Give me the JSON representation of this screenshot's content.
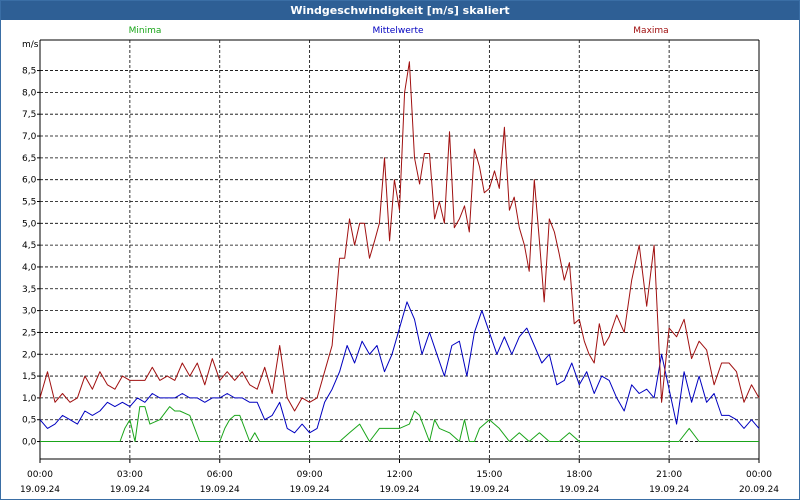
{
  "window": {
    "title": "Windgeschwindigkeit [m/s] skaliert"
  },
  "colors": {
    "minima": "#1aa51a",
    "mittelwerte": "#0000c0",
    "maxima": "#a01010",
    "grid": "#000000",
    "axis": "#000000"
  },
  "chart_data": {
    "type": "line",
    "title": "Windgeschwindigkeit [m/s] skaliert",
    "ylabel": "m/s",
    "ylim": [
      -0.4,
      9.2
    ],
    "xlim": [
      0,
      24
    ],
    "x_unit": "hours since 19.09.24 00:00",
    "y_ticks": [
      "0,0",
      "0,5",
      "1,0",
      "1,5",
      "2,0",
      "2,5",
      "3,0",
      "3,5",
      "4,0",
      "4,5",
      "5,0",
      "5,5",
      "6,0",
      "6,5",
      "7,0",
      "7,5",
      "8,0",
      "8,5"
    ],
    "x_ticks": [
      {
        "time": "00:00",
        "date": "19.09.24"
      },
      {
        "time": "03:00",
        "date": "19.09.24"
      },
      {
        "time": "06:00",
        "date": "19.09.24"
      },
      {
        "time": "09:00",
        "date": "19.09.24"
      },
      {
        "time": "12:00",
        "date": "19.09.24"
      },
      {
        "time": "15:00",
        "date": "19.09.24"
      },
      {
        "time": "18:00",
        "date": "19.09.24"
      },
      {
        "time": "21:00",
        "date": "19.09.24"
      },
      {
        "time": "00:00",
        "date": "20.09.24"
      }
    ],
    "grid": true,
    "legend_position": "top",
    "series": [
      {
        "name": "Minima",
        "x": [
          0.0,
          0.33,
          1.0,
          1.33,
          1.67,
          2.0,
          2.33,
          2.67,
          2.83,
          3.0,
          3.17,
          3.33,
          3.5,
          3.67,
          4.0,
          4.33,
          4.5,
          4.67,
          5.0,
          5.33,
          5.67,
          6.0,
          6.17,
          6.33,
          6.5,
          6.67,
          7.0,
          7.17,
          7.33,
          7.5,
          8.0,
          8.5,
          9.0,
          9.33,
          9.67,
          10.0,
          10.33,
          10.67,
          11.0,
          11.33,
          11.67,
          12.0,
          12.33,
          12.5,
          12.67,
          13.0,
          13.17,
          13.33,
          13.67,
          14.0,
          14.17,
          14.33,
          14.5,
          14.67,
          15.0,
          15.33,
          15.67,
          16.0,
          16.33,
          16.67,
          17.0,
          17.33,
          17.67,
          18.0,
          18.33,
          18.67,
          19.0,
          19.33,
          19.67,
          20.0,
          20.33,
          20.67,
          21.0,
          21.33,
          21.67,
          22.0,
          22.33,
          22.67,
          23.0,
          23.33,
          23.67,
          24.0
        ],
        "y": [
          0.0,
          0.0,
          0.0,
          0.0,
          0.0,
          0.0,
          0.0,
          0.0,
          0.3,
          0.5,
          0.0,
          0.8,
          0.8,
          0.4,
          0.5,
          0.8,
          0.7,
          0.7,
          0.6,
          0.0,
          0.0,
          0.0,
          0.3,
          0.5,
          0.6,
          0.6,
          0.0,
          0.2,
          0.0,
          0.0,
          0.0,
          0.0,
          0.0,
          0.0,
          0.0,
          0.0,
          0.2,
          0.4,
          0.0,
          0.3,
          0.3,
          0.3,
          0.4,
          0.7,
          0.6,
          0.0,
          0.5,
          0.3,
          0.2,
          0.0,
          0.5,
          0.0,
          0.0,
          0.3,
          0.5,
          0.3,
          0.0,
          0.2,
          0.0,
          0.2,
          0.0,
          0.0,
          0.2,
          0.0,
          0.0,
          0.0,
          0.0,
          0.0,
          0.0,
          0.0,
          0.0,
          0.0,
          0.0,
          0.0,
          0.3,
          0.0,
          0.0,
          0.0,
          0.0,
          0.0,
          0.0,
          0.0
        ]
      },
      {
        "name": "Mittelwerte",
        "x": [
          0.0,
          0.25,
          0.5,
          0.75,
          1.0,
          1.25,
          1.5,
          1.75,
          2.0,
          2.25,
          2.5,
          2.75,
          3.0,
          3.25,
          3.5,
          3.75,
          4.0,
          4.25,
          4.5,
          4.75,
          5.0,
          5.25,
          5.5,
          5.75,
          6.0,
          6.25,
          6.5,
          6.75,
          7.0,
          7.25,
          7.5,
          7.75,
          8.0,
          8.25,
          8.5,
          8.75,
          9.0,
          9.25,
          9.5,
          9.75,
          10.0,
          10.25,
          10.5,
          10.75,
          11.0,
          11.25,
          11.5,
          11.75,
          12.0,
          12.25,
          12.5,
          12.75,
          13.0,
          13.25,
          13.5,
          13.75,
          14.0,
          14.25,
          14.5,
          14.75,
          15.0,
          15.25,
          15.5,
          15.75,
          16.0,
          16.25,
          16.5,
          16.75,
          17.0,
          17.25,
          17.5,
          17.75,
          18.0,
          18.25,
          18.5,
          18.75,
          19.0,
          19.25,
          19.5,
          19.75,
          20.0,
          20.25,
          20.5,
          20.75,
          21.0,
          21.25,
          21.5,
          21.75,
          22.0,
          22.25,
          22.5,
          22.75,
          23.0,
          23.25,
          23.5,
          23.75,
          24.0
        ],
        "y": [
          0.5,
          0.3,
          0.4,
          0.6,
          0.5,
          0.4,
          0.7,
          0.6,
          0.7,
          0.9,
          0.8,
          0.9,
          0.8,
          1.0,
          0.9,
          1.1,
          1.0,
          1.0,
          1.0,
          1.1,
          1.0,
          1.0,
          0.9,
          1.0,
          1.0,
          1.1,
          1.0,
          1.0,
          0.9,
          0.9,
          0.5,
          0.6,
          0.9,
          0.3,
          0.2,
          0.4,
          0.2,
          0.3,
          0.9,
          1.2,
          1.6,
          2.2,
          1.8,
          2.3,
          2.0,
          2.2,
          1.6,
          2.0,
          2.6,
          3.2,
          2.8,
          2.0,
          2.5,
          2.0,
          1.5,
          2.2,
          2.3,
          1.5,
          2.5,
          3.0,
          2.5,
          2.0,
          2.4,
          2.0,
          2.4,
          2.6,
          2.2,
          1.8,
          2.0,
          1.3,
          1.4,
          1.8,
          1.3,
          1.6,
          1.1,
          1.5,
          1.4,
          1.0,
          0.7,
          1.3,
          1.1,
          1.2,
          1.0,
          2.0,
          1.2,
          0.4,
          1.6,
          0.9,
          1.5,
          0.9,
          1.1,
          0.6,
          0.6,
          0.5,
          0.3,
          0.5,
          0.3
        ]
      },
      {
        "name": "Maxima",
        "x": [
          0.0,
          0.25,
          0.5,
          0.75,
          1.0,
          1.25,
          1.5,
          1.75,
          2.0,
          2.25,
          2.5,
          2.75,
          3.0,
          3.25,
          3.5,
          3.75,
          4.0,
          4.25,
          4.5,
          4.75,
          5.0,
          5.25,
          5.5,
          5.75,
          6.0,
          6.25,
          6.5,
          6.75,
          7.0,
          7.25,
          7.5,
          7.75,
          8.0,
          8.25,
          8.5,
          8.75,
          9.0,
          9.25,
          9.5,
          9.75,
          10.0,
          10.17,
          10.33,
          10.5,
          10.67,
          10.83,
          11.0,
          11.17,
          11.33,
          11.5,
          11.67,
          11.83,
          12.0,
          12.17,
          12.33,
          12.5,
          12.67,
          12.83,
          13.0,
          13.17,
          13.33,
          13.5,
          13.67,
          13.83,
          14.0,
          14.17,
          14.33,
          14.5,
          14.67,
          14.83,
          15.0,
          15.17,
          15.33,
          15.5,
          15.67,
          15.83,
          16.0,
          16.17,
          16.33,
          16.5,
          16.67,
          16.83,
          17.0,
          17.17,
          17.33,
          17.5,
          17.67,
          17.83,
          18.0,
          18.17,
          18.33,
          18.5,
          18.67,
          18.83,
          19.0,
          19.25,
          19.5,
          19.75,
          20.0,
          20.25,
          20.5,
          20.75,
          21.0,
          21.25,
          21.5,
          21.75,
          22.0,
          22.25,
          22.5,
          22.75,
          23.0,
          23.25,
          23.5,
          23.75,
          24.0
        ],
        "y": [
          1.0,
          1.6,
          0.9,
          1.1,
          0.9,
          1.0,
          1.5,
          1.2,
          1.6,
          1.3,
          1.2,
          1.5,
          1.4,
          1.4,
          1.4,
          1.7,
          1.4,
          1.5,
          1.4,
          1.8,
          1.5,
          1.8,
          1.3,
          1.9,
          1.4,
          1.6,
          1.4,
          1.6,
          1.3,
          1.2,
          1.7,
          1.1,
          2.2,
          1.0,
          0.7,
          1.0,
          0.9,
          1.0,
          1.6,
          2.2,
          4.2,
          4.2,
          5.1,
          4.5,
          5.0,
          5.0,
          4.2,
          4.6,
          5.0,
          6.5,
          4.6,
          6.0,
          5.3,
          8.0,
          8.7,
          6.5,
          5.9,
          6.6,
          6.6,
          5.1,
          5.5,
          5.0,
          7.1,
          4.9,
          5.1,
          5.4,
          4.8,
          6.7,
          6.3,
          5.7,
          5.8,
          6.2,
          5.8,
          7.2,
          5.3,
          5.6,
          4.9,
          4.5,
          3.9,
          6.0,
          4.6,
          3.2,
          5.1,
          4.8,
          4.3,
          3.7,
          4.1,
          2.7,
          2.8,
          2.3,
          2.0,
          1.8,
          2.7,
          2.2,
          2.4,
          2.9,
          2.5,
          3.7,
          4.5,
          3.1,
          4.5,
          0.9,
          2.6,
          2.4,
          2.8,
          1.9,
          2.3,
          2.1,
          1.3,
          1.8,
          1.8,
          1.6,
          0.9,
          1.3,
          1.0
        ]
      }
    ]
  }
}
